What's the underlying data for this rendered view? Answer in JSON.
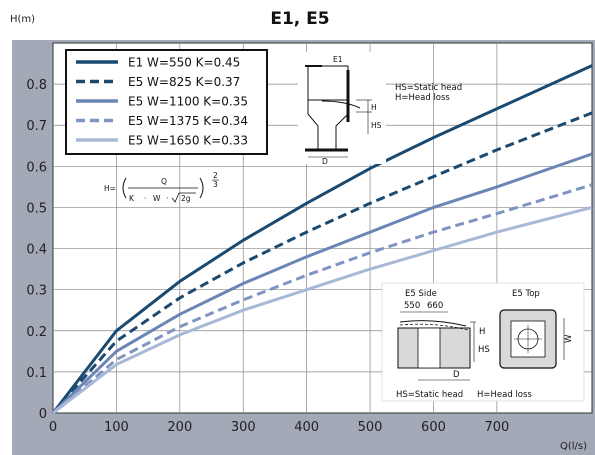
{
  "chart_data": {
    "type": "line",
    "title": "E1, E5",
    "ylabel": "H(m)",
    "xlabel": "Q(l/s)",
    "xlim": [
      0,
      850
    ],
    "ylim": [
      0,
      0.9
    ],
    "x_ticks": [
      0,
      100,
      200,
      300,
      400,
      500,
      600,
      700
    ],
    "y_ticks": [
      0,
      0.1,
      0.2,
      0.3,
      0.4,
      0.5,
      0.6,
      0.7,
      0.8
    ],
    "grid": true,
    "legend_position": "top-left",
    "x": [
      0,
      100,
      200,
      300,
      400,
      500,
      600,
      700,
      850
    ],
    "series": [
      {
        "name": "E1 W=550 K=0.45",
        "color": "#1b4a70",
        "dash": "solid",
        "values": [
          0,
          0.2,
          0.32,
          0.42,
          0.51,
          0.595,
          0.67,
          0.74,
          0.845
        ]
      },
      {
        "name": "E5 W=825 K=0.37",
        "color": "#1b4a70",
        "dash": "dashed",
        "values": [
          0,
          0.175,
          0.28,
          0.365,
          0.44,
          0.51,
          0.575,
          0.64,
          0.73
        ]
      },
      {
        "name": "E5 W=1100 K=0.35",
        "color": "#6b85b5",
        "dash": "solid",
        "values": [
          0,
          0.15,
          0.24,
          0.315,
          0.38,
          0.44,
          0.5,
          0.55,
          0.63
        ]
      },
      {
        "name": "E5 W=1375 K=0.34",
        "color": "#7f94c2",
        "dash": "dashed",
        "values": [
          0,
          0.13,
          0.21,
          0.275,
          0.335,
          0.39,
          0.44,
          0.485,
          0.555
        ]
      },
      {
        "name": "E5 W=1650 K=0.33",
        "color": "#a9b8d6",
        "dash": "solid",
        "values": [
          0,
          0.118,
          0.19,
          0.25,
          0.3,
          0.35,
          0.395,
          0.44,
          0.5
        ]
      }
    ],
    "formula": {
      "lhs": "H=",
      "numerator": "Q",
      "k": "K",
      "dot": "·",
      "w": "W",
      "radicand": "2g",
      "exp_num": "2",
      "exp_den": "3"
    },
    "annotations": {
      "e1_label": "E1",
      "e1_h": "H",
      "e1_hs": "HS",
      "e1_d": "D",
      "e1_legend_hs": "HS=Static head",
      "e1_legend_h": "H=Head loss",
      "e5_side": "E5 Side",
      "e5_top": "E5 Top",
      "dim_550": "550",
      "dim_660": "660",
      "e5_h": "H",
      "e5_hs": "HS",
      "e5_d": "D",
      "e5_w": "W",
      "e5_legend_hs": "HS=Static head",
      "e5_legend_h": "H=Head loss"
    }
  }
}
